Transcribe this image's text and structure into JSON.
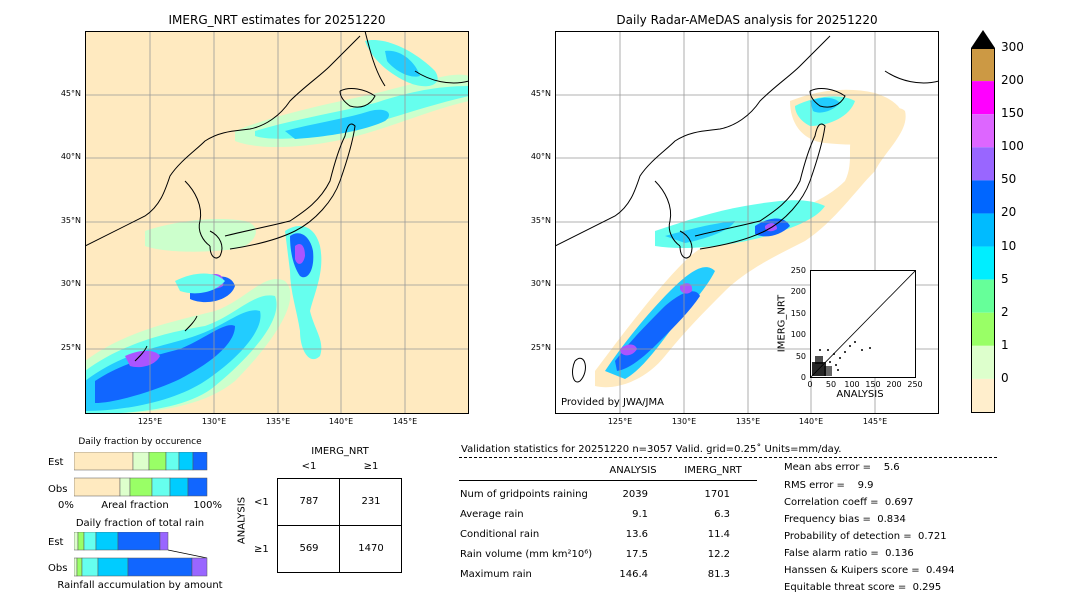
{
  "left_panel": {
    "title": "IMERG_NRT estimates for 20251220",
    "lat_labels": [
      "45°N",
      "40°N",
      "35°N",
      "30°N",
      "25°N"
    ],
    "lon_labels": [
      "125°E",
      "130°E",
      "135°E",
      "140°E",
      "145°E"
    ]
  },
  "right_panel": {
    "title": "Daily Radar-AMeDAS analysis for 20251220",
    "lat_labels": [
      "45°N",
      "40°N",
      "35°N",
      "30°N",
      "25°N"
    ],
    "lon_labels": [
      "125°E",
      "130°E",
      "135°E",
      "140°E",
      "145°E"
    ],
    "credit": "Provided by JWA/JMA"
  },
  "scatter_inset": {
    "ylabel": "IMERG_NRT",
    "xlabel": "ANALYSIS",
    "y_ticks": [
      "250",
      "200",
      "150",
      "100",
      "50",
      "0"
    ],
    "x_ticks": [
      "0",
      "50",
      "100",
      "150",
      "200",
      "250"
    ]
  },
  "colorbar": {
    "labels": [
      "300",
      "200",
      "150",
      "100",
      "50",
      "20",
      "10",
      "5",
      "2",
      "1",
      "0"
    ],
    "colors": [
      "#cc9944",
      "#ff00ff",
      "#dd66ff",
      "#9966ff",
      "#0066ff",
      "#00bbff",
      "#00eeff",
      "#66ff99",
      "#99ff66",
      "#ddffcc",
      "#ffeecc"
    ]
  },
  "occurrence": {
    "title": "Daily fraction by occurence",
    "row_est": "Est",
    "row_obs": "Obs",
    "axis_left": "0%",
    "axis_mid": "Areal fraction",
    "axis_right": "100%"
  },
  "total_rain": {
    "title": "Daily fraction of total rain",
    "row_est": "Est",
    "row_obs": "Obs",
    "axis_label": "Rainfall accumulation by amount"
  },
  "contingency": {
    "col_header": "IMERG_NRT",
    "col_lt1": "<1",
    "col_ge1": "≥1",
    "row_header": "ANALYSIS",
    "row_lt1": "<1",
    "row_ge1": "≥1",
    "cells": [
      "787",
      "231",
      "569",
      "1470"
    ]
  },
  "validation": {
    "header": "Validation statistics for 20251220  n=3057 Valid. grid=0.25˚ Units=mm/day.",
    "col_analysis": "ANALYSIS",
    "col_imerg": "IMERG_NRT",
    "rows": [
      {
        "label": "Num of gridpoints raining",
        "analysis": "2039",
        "imerg": "1701"
      },
      {
        "label": "Average rain",
        "analysis": "9.1",
        "imerg": "6.3"
      },
      {
        "label": "Conditional rain",
        "analysis": "13.6",
        "imerg": "11.4"
      },
      {
        "label": "Rain volume (mm km²10⁶)",
        "analysis": "17.5",
        "imerg": "12.2"
      },
      {
        "label": "Maximum rain",
        "analysis": "146.4",
        "imerg": "81.3"
      }
    ],
    "scores": [
      "Mean abs error =    5.6",
      "RMS error =    9.9",
      "Correlation coeff =  0.697",
      "Frequency bias =  0.834",
      "Probability of detection =  0.721",
      "False alarm ratio =  0.136",
      "Hanssen & Kuipers score =  0.494",
      "Equitable threat score =  0.295"
    ]
  }
}
